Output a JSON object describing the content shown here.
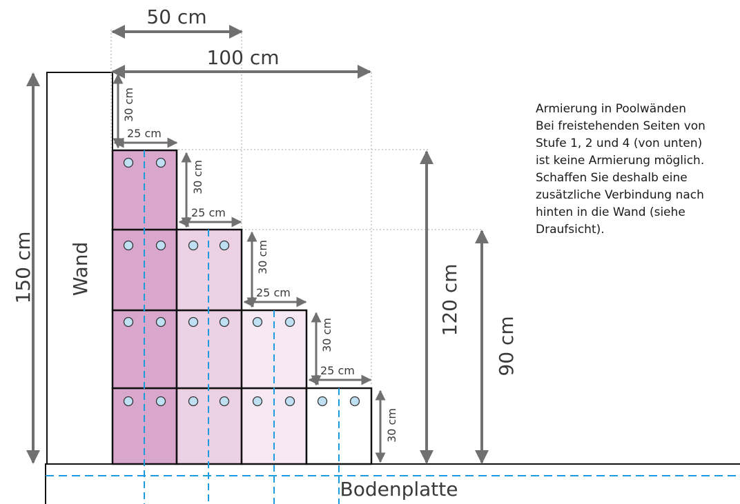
{
  "wall_label": "Wand",
  "base_label": "Bodenplatte",
  "dimensions": {
    "top_width_50": "50 cm",
    "top_width_100": "100 cm",
    "height_150": "150 cm",
    "height_120": "120 cm",
    "height_90": "90 cm",
    "step_height_30": "30 cm",
    "step_depth_25": "25 cm"
  },
  "note_lines": [
    "Armierung in Poolwänden",
    "Bei freistehenden Seiten von",
    "Stufe 1, 2 und 4 (von unten)",
    "ist keine Armierung möglich.",
    "Schaffen Sie deshalb eine",
    "zusätzliche Verbindung nach",
    "hinten in die Wand (siehe",
    "Draufsicht)."
  ],
  "colors": {
    "column_1": "#d9a6cc",
    "column_2": "#ecd0e4",
    "column_3": "#f7e9f3",
    "column_4": "#ffffff",
    "rebar": "#1a9be0",
    "hole_fill": "#bfe0f2",
    "arrow": "#707070",
    "guide": "#b8b8b8"
  }
}
